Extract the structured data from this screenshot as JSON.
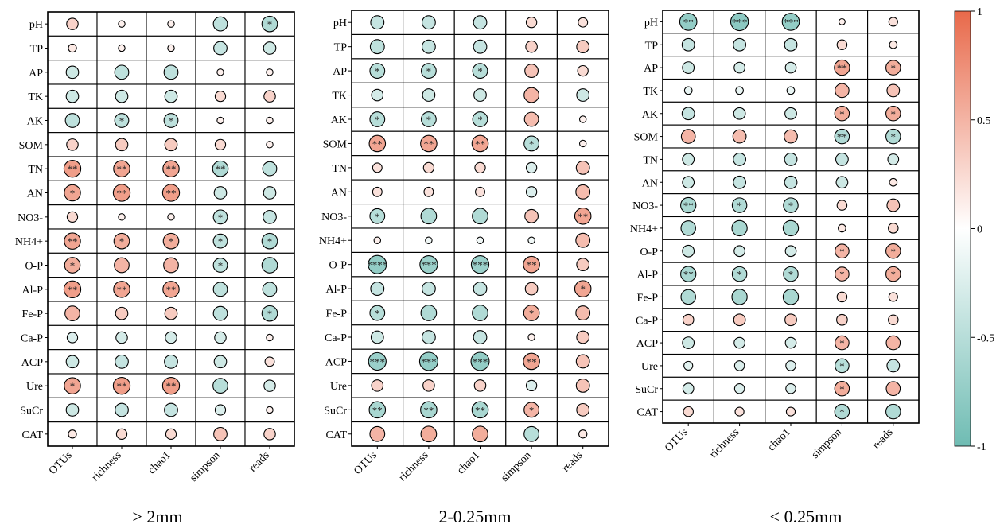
{
  "chart_data": {
    "type": "heatmap",
    "style": "circle correlation matrix (circle size and color = correlation; asterisks = significance)",
    "row_labels": [
      "pH",
      "TP",
      "AP",
      "TK",
      "AK",
      "SOM",
      "TN",
      "AN",
      "NO3-",
      "NH4+",
      "O-P",
      "Al-P",
      "Fe-P",
      "Ca-P",
      "ACP",
      "Ure",
      "SuCr",
      "CAT"
    ],
    "column_labels": [
      "OTUs",
      "richness",
      "chao1",
      "simpson",
      "reads"
    ],
    "colorbar": {
      "range": [
        -1,
        1
      ],
      "ticks": [
        1,
        0.5,
        0,
        -0.5,
        -1
      ],
      "tick_labels": [
        "1",
        "0.5",
        "0",
        "-0.5",
        "-1"
      ],
      "colors": {
        "negative": "#6FBCB3",
        "zero": "#FFFFFF",
        "positive": "#E8694A"
      }
    },
    "panels": [
      {
        "title": "> 2mm",
        "values": [
          [
            0.3,
            0.1,
            0.1,
            -0.45,
            -0.55
          ],
          [
            0.15,
            0.1,
            0.1,
            -0.4,
            -0.35
          ],
          [
            -0.35,
            -0.45,
            -0.45,
            0.1,
            0.1
          ],
          [
            -0.35,
            -0.35,
            -0.35,
            0.25,
            0.3
          ],
          [
            -0.45,
            -0.45,
            -0.45,
            0.1,
            0.1
          ],
          [
            0.3,
            0.35,
            0.35,
            0.25,
            0.1
          ],
          [
            0.65,
            0.6,
            0.6,
            -0.55,
            -0.45
          ],
          [
            0.6,
            0.65,
            0.65,
            -0.35,
            -0.35
          ],
          [
            0.25,
            0.1,
            0.1,
            -0.45,
            -0.4
          ],
          [
            0.6,
            0.55,
            0.55,
            -0.45,
            -0.55
          ],
          [
            0.55,
            0.5,
            0.5,
            -0.45,
            -0.55
          ],
          [
            0.65,
            0.6,
            0.6,
            -0.45,
            -0.45
          ],
          [
            0.5,
            0.35,
            0.35,
            -0.45,
            -0.55
          ],
          [
            -0.25,
            -0.3,
            -0.3,
            -0.3,
            0.1
          ],
          [
            -0.35,
            -0.4,
            -0.4,
            -0.35,
            0.2
          ],
          [
            0.6,
            0.65,
            0.65,
            -0.5,
            -0.3
          ],
          [
            -0.35,
            -0.4,
            -0.4,
            -0.25,
            0.1
          ],
          [
            0.15,
            0.25,
            0.25,
            0.4,
            0.3
          ]
        ],
        "stars": [
          [
            "",
            "",
            "",
            "",
            "*"
          ],
          [
            "",
            "",
            "",
            "",
            ""
          ],
          [
            "",
            "",
            "",
            "",
            ""
          ],
          [
            "",
            "",
            "",
            "",
            ""
          ],
          [
            "",
            "*",
            "*",
            "",
            ""
          ],
          [
            "",
            "",
            "",
            "",
            ""
          ],
          [
            "**",
            "**",
            "**",
            "**",
            ""
          ],
          [
            "*",
            "**",
            "**",
            "",
            ""
          ],
          [
            "",
            "",
            "",
            "*",
            ""
          ],
          [
            "**",
            "*",
            "*",
            "*",
            "*"
          ],
          [
            "*",
            "",
            "",
            "*",
            ""
          ],
          [
            "**",
            "**",
            "**",
            "",
            ""
          ],
          [
            "",
            "",
            "",
            "",
            "*"
          ],
          [
            "",
            "",
            "",
            "",
            ""
          ],
          [
            "",
            "",
            "",
            "",
            ""
          ],
          [
            "*",
            "**",
            "**",
            "",
            ""
          ],
          [
            "",
            "",
            "",
            "",
            ""
          ],
          [
            "",
            "",
            "",
            "",
            ""
          ]
        ]
      },
      {
        "title": "2-0.25mm",
        "values": [
          [
            -0.4,
            -0.4,
            -0.4,
            0.25,
            0.2
          ],
          [
            -0.45,
            -0.4,
            -0.4,
            0.3,
            0.35
          ],
          [
            -0.5,
            -0.5,
            -0.5,
            0.4,
            0.25
          ],
          [
            -0.3,
            -0.35,
            -0.35,
            0.5,
            -0.35
          ],
          [
            -0.5,
            -0.5,
            -0.5,
            0.45,
            0.1
          ],
          [
            0.6,
            0.6,
            0.6,
            -0.5,
            0.1
          ],
          [
            0.2,
            0.25,
            0.25,
            -0.25,
            0.4
          ],
          [
            0.2,
            0.2,
            0.2,
            -0.25,
            0.45
          ],
          [
            -0.5,
            -0.55,
            -0.55,
            0.4,
            0.6
          ],
          [
            0.1,
            -0.1,
            -0.1,
            -0.1,
            0.45
          ],
          [
            -0.75,
            -0.7,
            -0.7,
            0.6,
            0.35
          ],
          [
            -0.4,
            -0.4,
            -0.4,
            0.35,
            0.6
          ],
          [
            -0.5,
            -0.55,
            -0.55,
            0.55,
            0.45
          ],
          [
            -0.35,
            -0.4,
            -0.4,
            0.1,
            0.35
          ],
          [
            -0.7,
            -0.75,
            -0.75,
            0.6,
            0.4
          ],
          [
            0.3,
            0.3,
            0.3,
            -0.25,
            0.4
          ],
          [
            -0.6,
            -0.6,
            -0.6,
            0.5,
            0.35
          ],
          [
            0.5,
            0.55,
            0.55,
            -0.5,
            0.15
          ]
        ],
        "stars": [
          [
            "",
            "",
            "",
            "",
            ""
          ],
          [
            "",
            "",
            "",
            "",
            ""
          ],
          [
            "*",
            "*",
            "*",
            "",
            ""
          ],
          [
            "",
            "",
            "",
            "",
            ""
          ],
          [
            "*",
            "*",
            "*",
            "",
            ""
          ],
          [
            "**",
            "**",
            "**",
            "*",
            ""
          ],
          [
            "",
            "",
            "",
            "",
            ""
          ],
          [
            "",
            "",
            "",
            "",
            ""
          ],
          [
            "*",
            "",
            "",
            "",
            "**"
          ],
          [
            "",
            "",
            "",
            "",
            ""
          ],
          [
            "****",
            "***",
            "***",
            "**",
            ""
          ],
          [
            "",
            "",
            "",
            "",
            "*"
          ],
          [
            "*",
            "",
            "",
            "*",
            ""
          ],
          [
            "",
            "",
            "",
            "",
            ""
          ],
          [
            "***",
            "***",
            "***",
            "**",
            ""
          ],
          [
            "",
            "",
            "",
            "",
            ""
          ],
          [
            "**",
            "**",
            "**",
            "*",
            ""
          ],
          [
            "",
            "",
            "",
            "",
            ""
          ]
        ]
      },
      {
        "title": "< 0.25mm",
        "values": [
          [
            -0.75,
            -0.8,
            -0.75,
            0.1,
            0.2
          ],
          [
            -0.4,
            -0.4,
            -0.4,
            0.25,
            0.15
          ],
          [
            -0.35,
            -0.3,
            -0.3,
            0.6,
            0.55
          ],
          [
            -0.15,
            -0.15,
            -0.15,
            0.5,
            0.4
          ],
          [
            -0.4,
            -0.35,
            -0.35,
            0.55,
            0.55
          ],
          [
            0.5,
            0.45,
            0.45,
            -0.55,
            -0.55
          ],
          [
            -0.35,
            -0.4,
            -0.4,
            -0.4,
            -0.3
          ],
          [
            -0.35,
            -0.4,
            -0.4,
            -0.35,
            0.15
          ],
          [
            -0.6,
            -0.55,
            -0.55,
            0.25,
            0.4
          ],
          [
            -0.55,
            -0.6,
            -0.6,
            0.15,
            0.25
          ],
          [
            -0.35,
            -0.3,
            -0.3,
            0.5,
            0.55
          ],
          [
            -0.6,
            -0.55,
            -0.55,
            0.5,
            0.55
          ],
          [
            -0.55,
            -0.6,
            -0.6,
            0.25,
            0.2
          ],
          [
            0.3,
            0.35,
            0.35,
            0.3,
            0.25
          ],
          [
            -0.35,
            -0.3,
            -0.3,
            0.5,
            0.5
          ],
          [
            -0.2,
            -0.25,
            -0.25,
            -0.5,
            -0.4
          ],
          [
            -0.3,
            -0.25,
            -0.25,
            0.55,
            0.5
          ],
          [
            0.25,
            0.2,
            0.2,
            -0.55,
            -0.55
          ]
        ],
        "stars": [
          [
            "**",
            "***",
            "***",
            "",
            ""
          ],
          [
            "",
            "",
            "",
            "",
            ""
          ],
          [
            "",
            "",
            "",
            "**",
            "*"
          ],
          [
            "",
            "",
            "",
            "",
            ""
          ],
          [
            "",
            "",
            "",
            "*",
            "*"
          ],
          [
            "",
            "",
            "",
            "**",
            "*"
          ],
          [
            "",
            "",
            "",
            "",
            ""
          ],
          [
            "",
            "",
            "",
            "",
            ""
          ],
          [
            "**",
            "*",
            "*",
            "",
            ""
          ],
          [
            "",
            "",
            "",
            "",
            ""
          ],
          [
            "",
            "",
            "",
            "*",
            "*"
          ],
          [
            "**",
            "*",
            "*",
            "*",
            "*"
          ],
          [
            "",
            "",
            "",
            "",
            ""
          ],
          [
            "",
            "",
            "",
            "",
            ""
          ],
          [
            "",
            "",
            "",
            "*",
            ""
          ],
          [
            "",
            "",
            "",
            "*",
            ""
          ],
          [
            "",
            "",
            "",
            "*",
            ""
          ],
          [
            "",
            "",
            "",
            "*",
            ""
          ]
        ]
      }
    ]
  }
}
